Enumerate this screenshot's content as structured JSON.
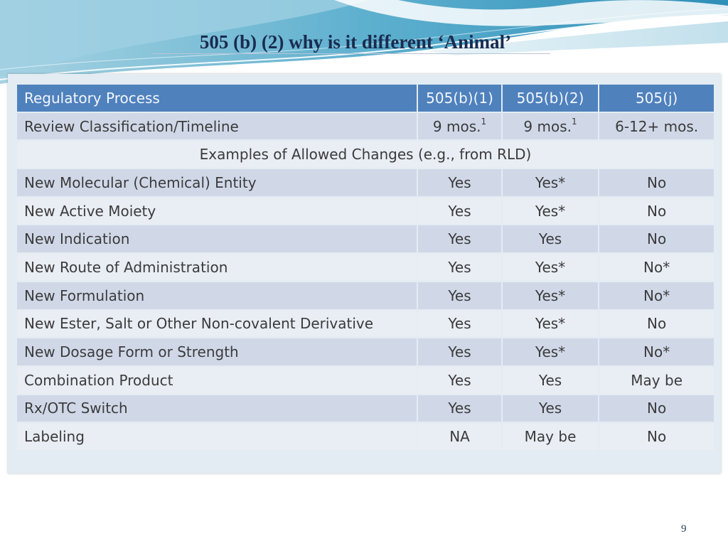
{
  "slide": {
    "title": "505 (b) (2) why is it different ‘Animal’",
    "page_number": "9"
  },
  "table": {
    "header": [
      "Regulatory Process",
      "505(b)(1)",
      "505(b)(2)",
      "505(j)"
    ],
    "timeline_row": {
      "label": "Review Classification/Timeline",
      "b1_value": "9 mos.",
      "b1_sup": "1",
      "b2_value": "9 mos.",
      "b2_sup": "1",
      "j_value": "6-12+ mos."
    },
    "section_label": "Examples of Allowed Changes (e.g., from RLD)",
    "rows": [
      [
        "New Molecular (Chemical) Entity",
        "Yes",
        "Yes*",
        "No"
      ],
      [
        "New Active Moiety",
        "Yes",
        "Yes*",
        "No"
      ],
      [
        "New Indication",
        "Yes",
        "Yes",
        "No"
      ],
      [
        "New Route of Administration",
        "Yes",
        "Yes*",
        "No*"
      ],
      [
        "New Formulation",
        "Yes",
        "Yes*",
        "No*"
      ],
      [
        "New Ester, Salt or Other Non-covalent Derivative",
        "Yes",
        "Yes*",
        "No"
      ],
      [
        "New Dosage Form or Strength",
        "Yes",
        "Yes*",
        "No*"
      ],
      [
        "Combination Product",
        "Yes",
        "Yes",
        "May be"
      ],
      [
        "Rx/OTC Switch",
        "Yes",
        "Yes",
        "No"
      ],
      [
        "Labeling",
        "NA",
        "May be",
        "No"
      ]
    ]
  }
}
